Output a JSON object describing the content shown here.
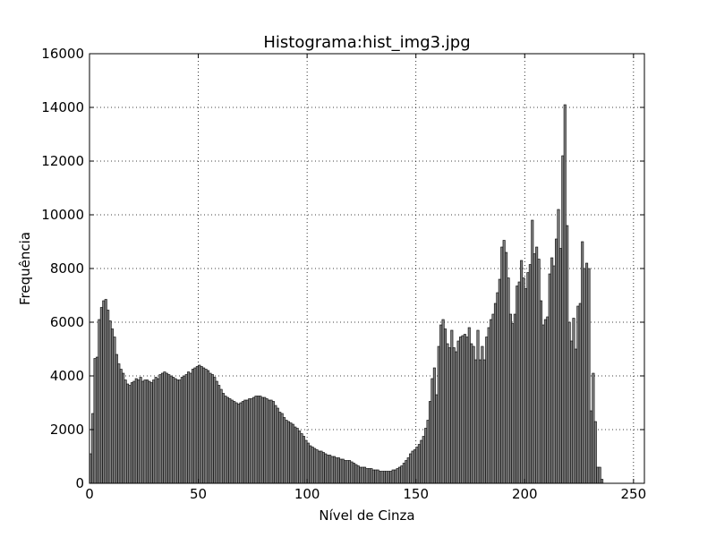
{
  "chart_data": {
    "type": "bar",
    "title": "Histograma:hist_img3.jpg",
    "xlabel": "Nível de Cinza",
    "ylabel": "Frequência",
    "xlim": [
      0,
      255
    ],
    "ylim": [
      0,
      16000
    ],
    "xticks": [
      0,
      50,
      100,
      150,
      200,
      250
    ],
    "yticks": [
      0,
      2000,
      4000,
      6000,
      8000,
      10000,
      12000,
      14000,
      16000
    ],
    "grid": true,
    "grid_style": "dotted",
    "bar_color": "#808080",
    "edge_color": "#000000",
    "bin_start": 0,
    "bin_width": 1,
    "values": [
      1100,
      2600,
      4650,
      4700,
      6100,
      6550,
      6800,
      6850,
      6450,
      6050,
      5750,
      5450,
      4800,
      4450,
      4250,
      4100,
      3850,
      3700,
      3650,
      3750,
      3800,
      3900,
      3850,
      3950,
      3800,
      3850,
      3850,
      3800,
      3750,
      3850,
      3950,
      3900,
      4050,
      4100,
      4150,
      4100,
      4050,
      4000,
      3950,
      3900,
      3850,
      3850,
      3950,
      4000,
      4050,
      4150,
      4100,
      4250,
      4300,
      4350,
      4400,
      4350,
      4300,
      4250,
      4200,
      4100,
      4050,
      3950,
      3800,
      3650,
      3500,
      3350,
      3250,
      3200,
      3150,
      3100,
      3050,
      3000,
      2950,
      3000,
      3050,
      3100,
      3100,
      3150,
      3150,
      3200,
      3250,
      3250,
      3250,
      3200,
      3200,
      3150,
      3100,
      3100,
      3050,
      2900,
      2800,
      2650,
      2600,
      2450,
      2350,
      2300,
      2250,
      2200,
      2100,
      2050,
      1950,
      1850,
      1750,
      1600,
      1500,
      1400,
      1350,
      1300,
      1250,
      1200,
      1200,
      1150,
      1100,
      1050,
      1050,
      1000,
      1000,
      950,
      950,
      900,
      900,
      850,
      850,
      850,
      800,
      750,
      700,
      650,
      600,
      600,
      600,
      550,
      550,
      550,
      500,
      500,
      500,
      450,
      450,
      450,
      450,
      450,
      450,
      500,
      500,
      550,
      600,
      650,
      750,
      850,
      950,
      1100,
      1200,
      1250,
      1350,
      1450,
      1600,
      1750,
      2050,
      2350,
      3050,
      3900,
      4300,
      3300,
      5100,
      5900,
      6100,
      5750,
      5200,
      5050,
      5700,
      5050,
      4900,
      5300,
      5450,
      5500,
      5550,
      5450,
      5800,
      5200,
      5100,
      4600,
      5700,
      4600,
      5100,
      4600,
      5450,
      5800,
      6100,
      6300,
      6700,
      7100,
      7600,
      8800,
      9050,
      8600,
      7650,
      6300,
      5950,
      6300,
      7350,
      7500,
      8300,
      7650,
      7250,
      7850,
      8150,
      9800,
      8550,
      8800,
      8350,
      6800,
      5900,
      6100,
      6200,
      7800,
      8400,
      8100,
      9100,
      10200,
      8750,
      12200,
      14100,
      9600,
      6000,
      5300,
      6150,
      5000,
      6600,
      6700,
      9000,
      8000,
      8200,
      8000,
      2700,
      4100,
      2300,
      600,
      600,
      150,
      0,
      0,
      0,
      0,
      0,
      0,
      0,
      0,
      0,
      0,
      0,
      0,
      0,
      0,
      0,
      0,
      0,
      0,
      0,
      0
    ]
  }
}
